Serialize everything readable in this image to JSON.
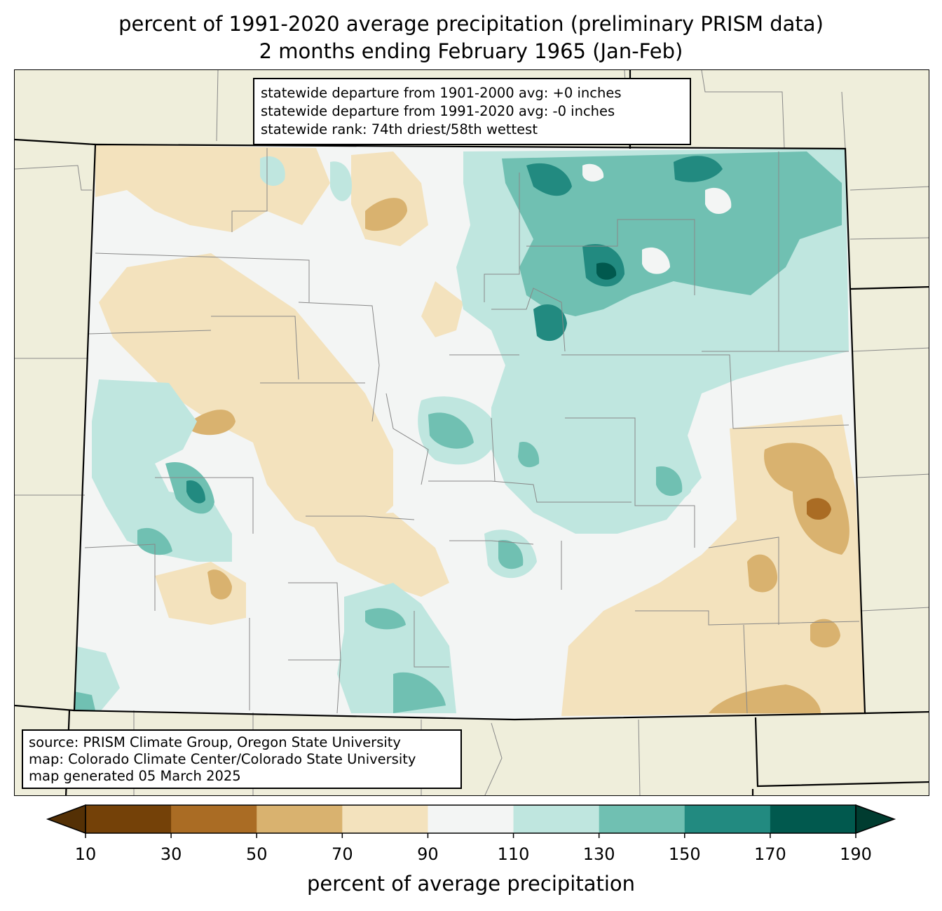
{
  "title_line1": "percent of 1991-2020 average precipitation (preliminary PRISM data)",
  "title_line2": "2 months ending February 1965 (Jan-Feb)",
  "stats": [
    "statewide departure from 1901-2000 avg: +0 inches",
    "statewide departure from 1991-2020 avg: -0 inches",
    "statewide rank: 74th driest/58th wettest"
  ],
  "source": [
    "source: PRISM Climate Group, Oregon State University",
    "map: Colorado Climate Center/Colorado State University",
    "map generated 05 March 2025"
  ],
  "colorbar": {
    "label": "percent of average precipitation",
    "ticks": [
      "10",
      "30",
      "50",
      "70",
      "90",
      "110",
      "130",
      "150",
      "170",
      "190"
    ],
    "under_color": "#543005",
    "over_color": "#003c30",
    "colors": [
      "#744108",
      "#aa6c24",
      "#d9b26f",
      "#f3e2bd",
      "#f3f5f4",
      "#bfe6df",
      "#70c0b2",
      "#228a80",
      "#01594e"
    ]
  },
  "map_colors": {
    "background": "#efeedb",
    "state_outline": "#000000",
    "county_lines": "#888888"
  }
}
